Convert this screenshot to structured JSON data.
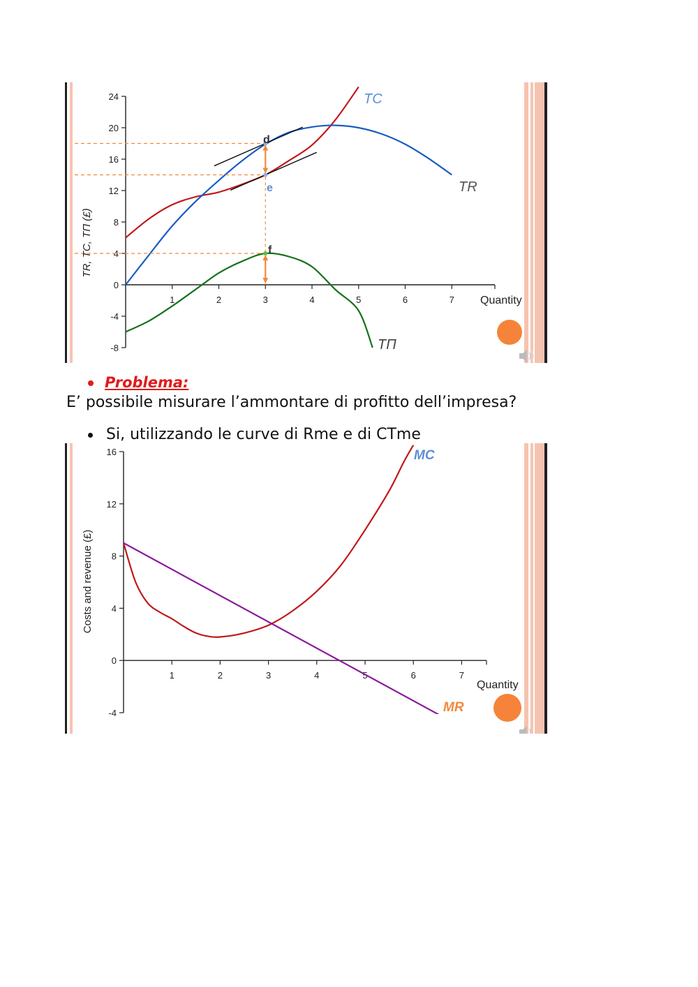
{
  "colors": {
    "tc": "#c0191b",
    "tr": "#1a5cc0",
    "tp": "#17701a",
    "mc": "#c0191b",
    "mr": "#8b1a9c",
    "guide": "#f08a3c",
    "tangent": "#111111",
    "label_blue": "#5b8fd6",
    "label_orange": "#f08a3c",
    "edge_pink": "#f6c3b0",
    "edge_dark": "#222222",
    "orange_dot": "#f5843a"
  },
  "text": {
    "problem_label": "Problema:",
    "question": "E’ possibile misurare l’ammontare di profitto dell’impresa?",
    "answer": "Si, utilizzando le curve di Rme e di CTme"
  },
  "icons": [
    "speaker-icon",
    "orange-circle-icon"
  ],
  "chart_data": [
    {
      "type": "line",
      "title": "",
      "xlabel": "Quantity",
      "ylabel": "TR, TC, TΠ (£)",
      "xlim": [
        0,
        8
      ],
      "ylim": [
        -8,
        24
      ],
      "x_ticks": [
        1,
        2,
        3,
        4,
        5,
        6,
        7
      ],
      "y_ticks": [
        -8,
        -4,
        0,
        4,
        8,
        12,
        16,
        20,
        24
      ],
      "series": [
        {
          "name": "TC",
          "color": "#c0191b",
          "points": [
            [
              0,
              6
            ],
            [
              0.5,
              8.4
            ],
            [
              1,
              10.2
            ],
            [
              1.5,
              11.2
            ],
            [
              2,
              11.8
            ],
            [
              2.5,
              12.8
            ],
            [
              3,
              14
            ],
            [
              3.5,
              15.8
            ],
            [
              4,
              17.8
            ],
            [
              4.5,
              21
            ],
            [
              5,
              25.2
            ]
          ]
        },
        {
          "name": "TR",
          "color": "#1a5cc0",
          "points": [
            [
              0,
              0
            ],
            [
              0.5,
              3.8
            ],
            [
              1,
              7.5
            ],
            [
              1.5,
              10.6
            ],
            [
              2,
              13.3
            ],
            [
              2.5,
              15.8
            ],
            [
              3,
              17.9
            ],
            [
              3.5,
              19.4
            ],
            [
              4,
              20.1
            ],
            [
              4.5,
              20.3
            ],
            [
              5,
              20
            ],
            [
              5.5,
              19.2
            ],
            [
              6,
              17.9
            ],
            [
              6.5,
              16.1
            ],
            [
              7,
              14
            ]
          ]
        },
        {
          "name": "TΠ",
          "color": "#17701a",
          "points": [
            [
              0,
              -6
            ],
            [
              0.5,
              -4.6
            ],
            [
              1,
              -2.7
            ],
            [
              1.5,
              -0.6
            ],
            [
              2,
              1.5
            ],
            [
              2.5,
              3
            ],
            [
              3,
              4
            ],
            [
              3.5,
              3.6
            ],
            [
              4,
              2.3
            ],
            [
              4.5,
              -0.6
            ],
            [
              5,
              -3.3
            ],
            [
              5.3,
              -8
            ]
          ]
        }
      ],
      "tangents": [
        {
          "through": [
            3,
            18
          ],
          "slope": 2.6,
          "x_range": [
            1.9,
            3.8
          ]
        },
        {
          "through": [
            3,
            14
          ],
          "slope": 2.6,
          "x_range": [
            2.25,
            4.1
          ]
        }
      ],
      "guide_levels": [
        18,
        14,
        4
      ],
      "guide_x": 3,
      "points": [
        {
          "label": "d",
          "x": 3,
          "y": 18
        },
        {
          "label": "e",
          "x": 3,
          "y": 14
        },
        {
          "label": "f",
          "x": 3,
          "y": 4
        }
      ]
    },
    {
      "type": "line",
      "title": "",
      "xlabel": "Quantity",
      "ylabel": "Costs and revenue (£)",
      "xlim": [
        0,
        7.5
      ],
      "ylim": [
        -4,
        16
      ],
      "x_ticks": [
        1,
        2,
        3,
        4,
        5,
        6,
        7
      ],
      "y_ticks": [
        -4,
        0,
        4,
        8,
        12,
        16
      ],
      "series": [
        {
          "name": "MC",
          "color": "#c0191b",
          "points": [
            [
              0,
              9
            ],
            [
              0.25,
              6
            ],
            [
              0.5,
              4.4
            ],
            [
              0.75,
              3.7
            ],
            [
              1,
              3.2
            ],
            [
              1.25,
              2.6
            ],
            [
              1.5,
              2.1
            ],
            [
              1.75,
              1.85
            ],
            [
              2,
              1.8
            ],
            [
              2.5,
              2.1
            ],
            [
              3,
              2.7
            ],
            [
              3.5,
              3.8
            ],
            [
              4,
              5.3
            ],
            [
              4.5,
              7.3
            ],
            [
              5,
              10
            ],
            [
              5.5,
              13
            ],
            [
              5.8,
              15.2
            ],
            [
              6,
              16.5
            ]
          ]
        },
        {
          "name": "MR",
          "color": "#8b1a9c",
          "points": [
            [
              0,
              9
            ],
            [
              6.55,
              -4.2
            ]
          ]
        }
      ]
    }
  ]
}
